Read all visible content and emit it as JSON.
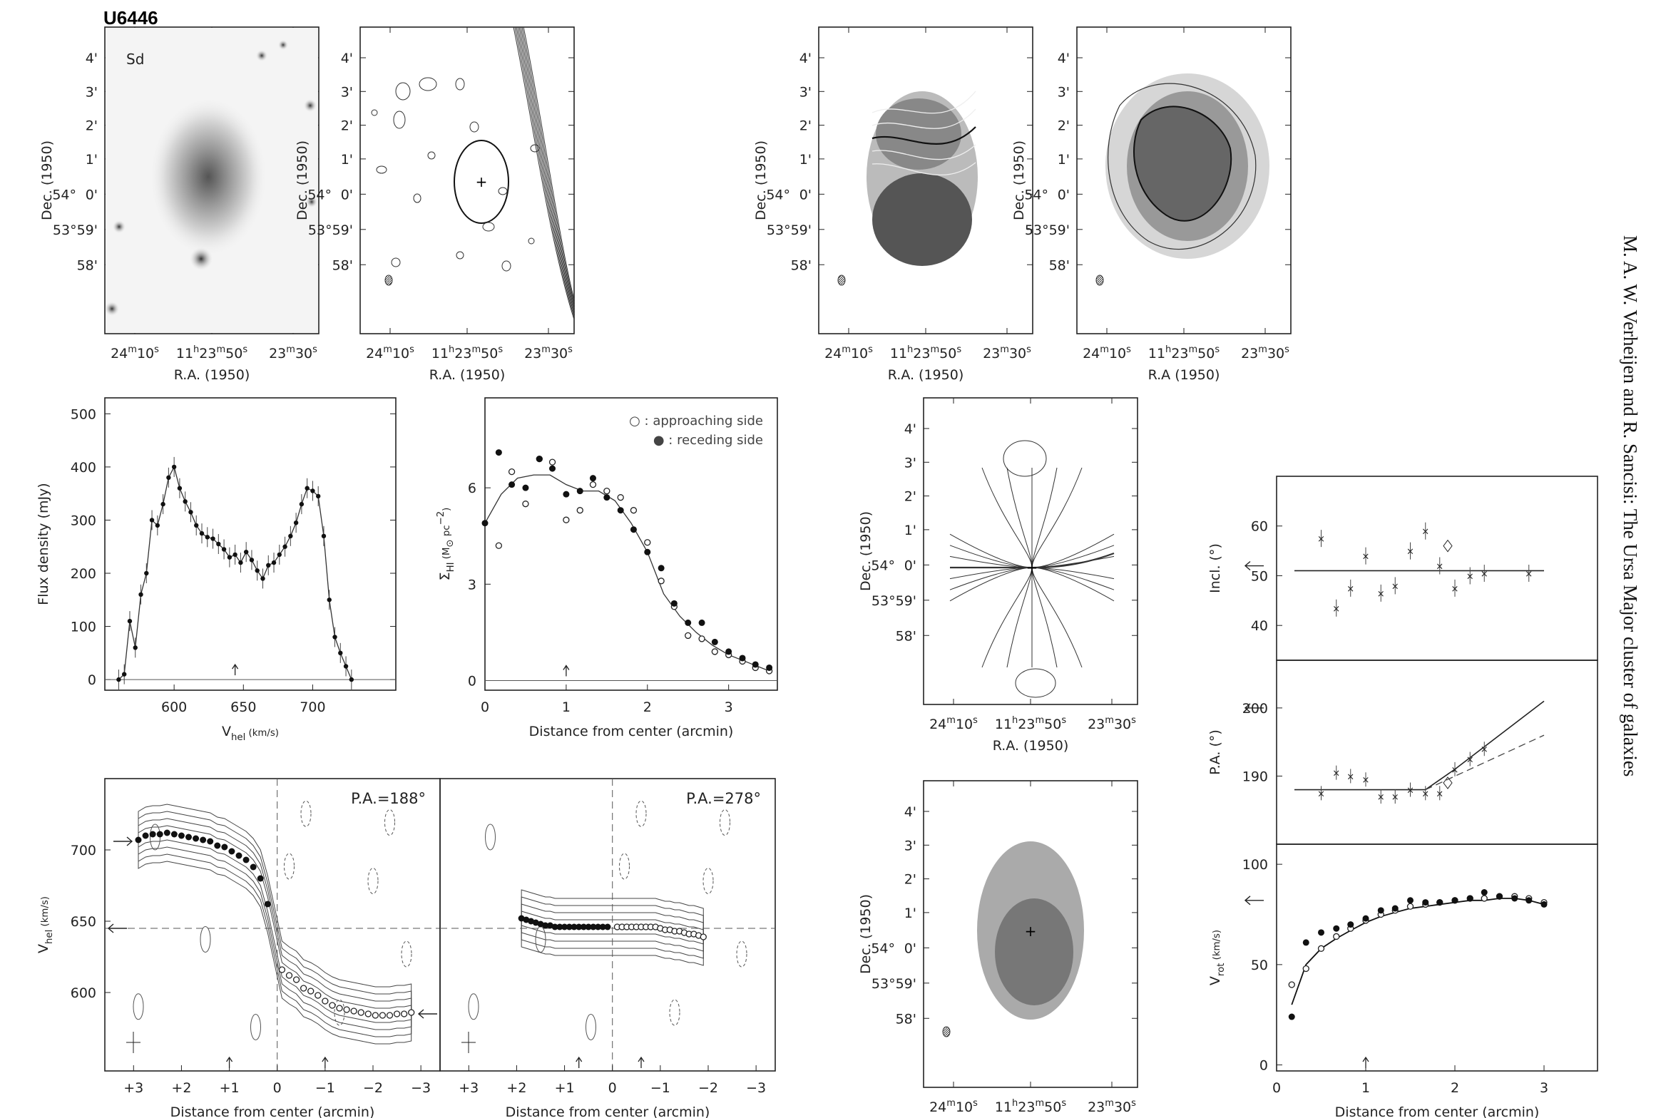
{
  "figure": {
    "title": "U6446",
    "morph_type": "Sd",
    "sidebar_text": "M. A. W. Verheijen and R. Sancisi: The Ursa Major cluster of galaxies"
  },
  "labels": {
    "ra": "R.A. (1950)",
    "ra_alt": "R.A (1950)",
    "dec": "Dec. (1950)",
    "flux": "Flux density (mJy)",
    "vhel": "V",
    "vhel_sub": "hel",
    "vhel_unit": " (km/s)",
    "sigma": "Σ",
    "sigma_sub": "HI",
    "sigma_unit": " (M",
    "sigma_sun": "⊙",
    "sigma_unit2": " pc",
    "sigma_exp": "−2",
    "sigma_close": ")",
    "distance": "Distance from center (arcmin)",
    "incl": "Incl. (°)",
    "pa": "P.A. (°)",
    "vrot": "V",
    "vrot_sub": "rot",
    "vrot_unit": " (km/s)",
    "pv1_title": "P.A.=188°",
    "pv2_title": "P.A.=278°",
    "legend_open": "○ : approaching side",
    "legend_filled": "● : receding side"
  },
  "ticks": {
    "dec": [
      "4'",
      "3'",
      "2'",
      "1'",
      "0'",
      "53°59'",
      "58'"
    ],
    "dec_prefix_1": "54°",
    "ra": [
      "24m10s",
      "11h23m50s",
      "23m30s"
    ],
    "flux_y": [
      "0",
      "100",
      "200",
      "300",
      "400",
      "500"
    ],
    "flux_x": [
      "600",
      "650",
      "700"
    ],
    "sigma_y": [
      "0",
      "3",
      "6"
    ],
    "dist_x": [
      "0",
      "1",
      "2",
      "3"
    ],
    "pv_y": [
      "600",
      "650",
      "700"
    ],
    "pv_x": [
      "+3",
      "+2",
      "+1",
      "0",
      "−1",
      "−2",
      "−3"
    ],
    "incl_y": [
      "40",
      "50",
      "60"
    ],
    "pa_y": [
      "190",
      "200"
    ],
    "vrot_y": [
      "0",
      "50",
      "100"
    ]
  },
  "chart_data": [
    {
      "type": "line",
      "title": "",
      "xlabel": "Vhel (km/s)",
      "ylabel": "Flux density (mJy)",
      "xlim": [
        550,
        760
      ],
      "ylim": [
        -20,
        530
      ],
      "x": [
        560,
        564,
        568,
        572,
        576,
        580,
        584,
        588,
        592,
        596,
        600,
        604,
        608,
        612,
        616,
        620,
        624,
        628,
        632,
        636,
        640,
        644,
        648,
        652,
        656,
        660,
        664,
        668,
        672,
        676,
        680,
        684,
        688,
        692,
        696,
        700,
        704,
        708,
        712,
        716,
        720,
        724,
        728
      ],
      "values": [
        0,
        10,
        110,
        60,
        160,
        200,
        300,
        290,
        330,
        380,
        400,
        360,
        335,
        315,
        290,
        275,
        268,
        265,
        255,
        245,
        230,
        235,
        220,
        240,
        225,
        205,
        190,
        215,
        220,
        235,
        250,
        270,
        295,
        330,
        360,
        355,
        345,
        270,
        150,
        80,
        50,
        25,
        0
      ],
      "arrow_x": 644
    },
    {
      "type": "scatter",
      "title": "",
      "xlabel": "Distance from center (arcmin)",
      "ylabel": "ΣHI (M⊙ pc−2)",
      "xlim": [
        0,
        3.6
      ],
      "ylim": [
        -0.3,
        8.8
      ],
      "series": [
        {
          "name": "approaching side",
          "x": [
            0.17,
            0.33,
            0.5,
            0.67,
            0.83,
            1.0,
            1.17,
            1.33,
            1.5,
            1.67,
            1.83,
            2.0,
            2.17,
            2.33,
            2.5,
            2.67,
            2.83,
            3.0,
            3.17,
            3.33,
            3.5
          ],
          "values": [
            4.2,
            6.5,
            5.5,
            6.9,
            6.8,
            5.0,
            5.3,
            6.1,
            5.9,
            5.7,
            5.3,
            4.3,
            3.1,
            2.3,
            1.4,
            1.3,
            0.9,
            0.8,
            0.6,
            0.4,
            0.3
          ]
        },
        {
          "name": "receding side",
          "x": [
            0.0,
            0.17,
            0.33,
            0.5,
            0.67,
            0.83,
            1.0,
            1.17,
            1.33,
            1.5,
            1.67,
            1.83,
            2.0,
            2.17,
            2.33,
            2.5,
            2.67,
            2.83,
            3.0,
            3.17,
            3.33,
            3.5
          ],
          "values": [
            4.9,
            7.1,
            6.1,
            6.0,
            6.9,
            6.6,
            5.8,
            5.9,
            6.3,
            5.7,
            5.3,
            4.7,
            4.0,
            3.5,
            2.4,
            1.8,
            1.8,
            1.2,
            0.9,
            0.7,
            0.5,
            0.4
          ]
        },
        {
          "name": "",
          "x": [
            0.0,
            0.2,
            0.4,
            0.6,
            0.8,
            1.0,
            1.2,
            1.4,
            1.6,
            1.8,
            2.0,
            2.2,
            2.4,
            2.6,
            2.8,
            3.0,
            3.2,
            3.5
          ],
          "values": [
            4.9,
            5.8,
            6.3,
            6.4,
            6.4,
            6.1,
            5.9,
            5.9,
            5.6,
            4.9,
            4.0,
            2.7,
            2.0,
            1.5,
            1.1,
            0.8,
            0.6,
            0.3
          ]
        }
      ],
      "arrow_x": 1.0
    },
    {
      "type": "scatter",
      "title": "",
      "xlabel": "Distance from center (arcmin)",
      "ylabel": "Incl. (°)",
      "xlim": [
        0,
        3.6
      ],
      "ylim": [
        33,
        70
      ],
      "series": [
        {
          "name": "",
          "x": [
            0.5,
            0.67,
            0.83,
            1.0,
            1.17,
            1.33,
            1.5,
            1.67,
            1.83,
            2.0,
            2.17,
            2.33,
            2.83
          ],
          "values": [
            57.5,
            43.5,
            47.5,
            54,
            46.5,
            48,
            55,
            59,
            52,
            47.5,
            50,
            50.5,
            50.5
          ]
        },
        {
          "name": "fit",
          "x": [
            0.2,
            3.0
          ],
          "values": [
            51,
            51
          ]
        },
        {
          "name": "diamond",
          "x": [
            1.92
          ],
          "values": [
            56
          ]
        }
      ]
    },
    {
      "type": "line",
      "title": "",
      "xlabel": "Distance from center (arcmin)",
      "ylabel": "P.A. (°)",
      "xlim": [
        0,
        3.6
      ],
      "ylim": [
        180,
        207
      ],
      "series": [
        {
          "name": "",
          "x": [
            0.5,
            0.67,
            0.83,
            1.0,
            1.17,
            1.33,
            1.5,
            1.67,
            1.83,
            2.0,
            2.17,
            2.33
          ],
          "values": [
            187.5,
            190.5,
            190,
            189.5,
            187,
            187,
            188,
            187.5,
            187.5,
            191,
            192.5,
            194
          ]
        },
        {
          "name": "fit",
          "x": [
            0.2,
            1.67,
            2.0,
            3.0
          ],
          "values": [
            188,
            188,
            191,
            201
          ]
        },
        {
          "name": "fit-dashed",
          "x": [
            1.67,
            3.0
          ],
          "values": [
            188,
            196
          ]
        },
        {
          "name": "diamond",
          "x": [
            1.92
          ],
          "values": [
            189
          ]
        }
      ]
    },
    {
      "type": "line",
      "title": "",
      "xlabel": "Distance from center (arcmin)",
      "ylabel": "Vrot (km/s)",
      "xlim": [
        0,
        3.6
      ],
      "ylim": [
        -3,
        110
      ],
      "series": [
        {
          "name": "approaching side",
          "x": [
            0.17,
            0.33,
            0.5,
            0.67,
            0.83,
            1.0,
            1.17,
            1.33,
            1.5,
            1.67,
            1.83,
            2.0,
            2.17,
            2.33,
            2.5,
            2.67,
            2.83,
            3.0
          ],
          "values": [
            40,
            48,
            58,
            64,
            68,
            72,
            75,
            77,
            79,
            80,
            81,
            82,
            83,
            83,
            84,
            84,
            83,
            81
          ]
        },
        {
          "name": "receding side",
          "x": [
            0.17,
            0.33,
            0.5,
            0.67,
            0.83,
            1.0,
            1.17,
            1.33,
            1.5,
            1.67,
            1.83,
            2.0,
            2.17,
            2.33,
            2.5,
            2.67,
            2.83,
            3.0
          ],
          "values": [
            24,
            61,
            66,
            68,
            70,
            73,
            77,
            78,
            82,
            81,
            81,
            82,
            83,
            86,
            84,
            83,
            82,
            80
          ]
        },
        {
          "name": "",
          "x": [
            0.17,
            0.33,
            0.5,
            0.67,
            0.83,
            1.0,
            1.17,
            1.33,
            1.5,
            1.67,
            1.83,
            2.0,
            2.17,
            2.33,
            2.5,
            2.67,
            2.83,
            3.0
          ],
          "values": [
            30,
            50,
            58,
            63,
            67,
            71,
            74,
            76,
            78,
            79,
            80,
            81,
            82,
            82,
            83,
            83,
            82,
            80
          ]
        }
      ],
      "arrow_x": 1.0
    },
    {
      "type": "scatter",
      "title": "P.A.=188°",
      "xlabel": "Distance from center (arcmin)",
      "ylabel": "Vhel (km/s)",
      "xlim": [
        3.6,
        -3.4
      ],
      "ylim": [
        545,
        750
      ],
      "series": [
        {
          "name": "receding",
          "x": [
            2.9,
            2.75,
            2.6,
            2.45,
            2.3,
            2.15,
            2.0,
            1.85,
            1.7,
            1.55,
            1.4,
            1.25,
            1.1,
            0.95,
            0.8,
            0.65,
            0.5,
            0.35,
            0.2
          ],
          "values": [
            707,
            710,
            711,
            711,
            712,
            711,
            710,
            709,
            708,
            707,
            706,
            703,
            702,
            699,
            696,
            693,
            688,
            680,
            662
          ]
        },
        {
          "name": "approaching",
          "x": [
            -0.1,
            -0.25,
            -0.4,
            -0.55,
            -0.7,
            -0.85,
            -1.0,
            -1.15,
            -1.3,
            -1.45,
            -1.6,
            -1.75,
            -1.9,
            -2.05,
            -2.2,
            -2.35,
            -2.5,
            -2.65,
            -2.8
          ],
          "values": [
            616,
            612,
            609,
            603,
            601,
            598,
            594,
            591,
            589,
            588,
            587,
            586,
            585,
            584,
            584,
            584,
            585,
            585,
            586
          ]
        }
      ],
      "arrows_x": [
        1.0,
        -1.0
      ]
    },
    {
      "type": "scatter",
      "title": "P.A.=278°",
      "xlabel": "Distance from center (arcmin)",
      "ylabel": "",
      "xlim": [
        3.6,
        -3.4
      ],
      "ylim": [
        545,
        750
      ],
      "series": [
        {
          "name": "receding",
          "x": [
            1.9,
            1.8,
            1.7,
            1.6,
            1.5,
            1.4,
            1.3,
            1.2,
            1.1,
            1.0,
            0.9,
            0.8,
            0.7,
            0.6,
            0.5,
            0.4,
            0.3,
            0.2,
            0.1
          ],
          "values": [
            652,
            651,
            650,
            649,
            648,
            647,
            647,
            646,
            646,
            646,
            646,
            646,
            646,
            646,
            646,
            646,
            646,
            646,
            646
          ]
        },
        {
          "name": "approaching",
          "x": [
            -0.1,
            -0.2,
            -0.3,
            -0.4,
            -0.5,
            -0.6,
            -0.7,
            -0.8,
            -0.9,
            -1.0,
            -1.1,
            -1.2,
            -1.3,
            -1.4,
            -1.5,
            -1.6,
            -1.7,
            -1.8,
            -1.9
          ],
          "values": [
            646,
            646,
            646,
            646,
            646,
            646,
            646,
            646,
            646,
            645,
            644,
            644,
            643,
            643,
            642,
            641,
            641,
            640,
            639
          ]
        }
      ],
      "arrows_x": [
        0.7,
        -0.6
      ]
    }
  ]
}
